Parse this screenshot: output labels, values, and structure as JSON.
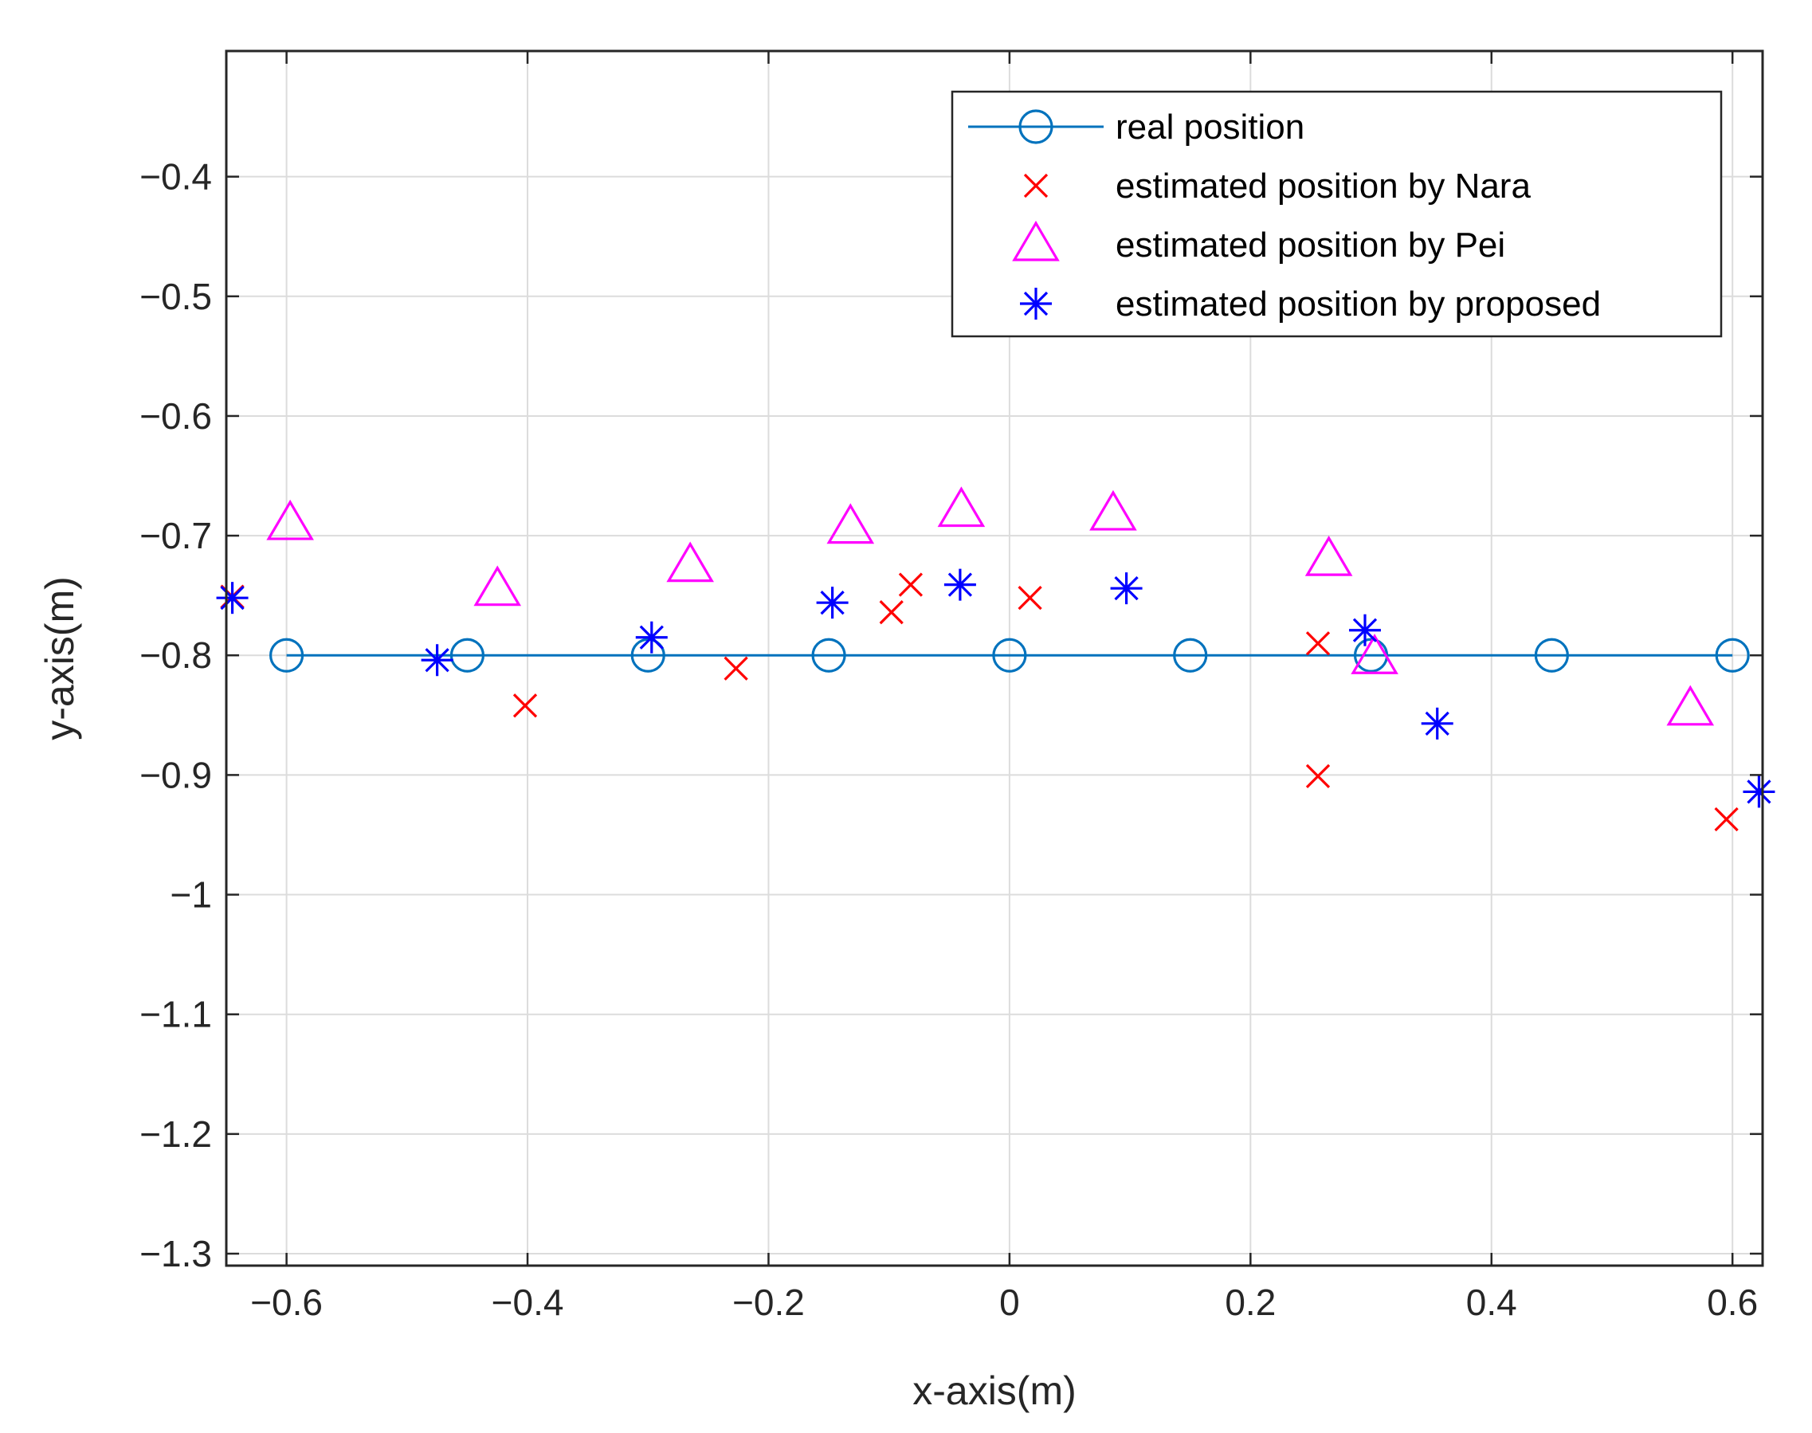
{
  "chart_data": {
    "type": "scatter",
    "title": "",
    "xlabel": "x-axis(m)",
    "ylabel": "y-axis(m)",
    "xlim": [
      -0.65,
      0.625
    ],
    "ylim": [
      -1.31,
      -0.295
    ],
    "grid": true,
    "legend_position": "top-right",
    "x_ticks": [
      -0.6,
      -0.4,
      -0.2,
      0,
      0.2,
      0.4,
      0.6
    ],
    "x_tick_labels": [
      "−0.6",
      "−0.4",
      "−0.2",
      "0",
      "0.2",
      "0.4",
      "0.6"
    ],
    "y_ticks": [
      -0.4,
      -0.5,
      -0.6,
      -0.7,
      -0.8,
      -0.9,
      -1.0,
      -1.1,
      -1.2,
      -1.3
    ],
    "y_tick_labels": [
      "−0.4",
      "−0.5",
      "−0.6",
      "−0.7",
      "−0.8",
      "−0.9",
      "−1",
      "−1.1",
      "−1.2",
      "−1.3"
    ],
    "series": [
      {
        "name": "real position",
        "marker": "circle",
        "line": true,
        "color": "#0072BD",
        "x": [
          -0.6,
          -0.45,
          -0.3,
          -0.15,
          0.0,
          0.15,
          0.3,
          0.45,
          0.6
        ],
        "y": [
          -0.8,
          -0.8,
          -0.8,
          -0.8,
          -0.8,
          -0.8,
          -0.8,
          -0.8,
          -0.8
        ]
      },
      {
        "name": "estimated position by Nara",
        "marker": "x",
        "line": false,
        "color": "#FF0000",
        "x": [
          -0.645,
          -0.402,
          -0.227,
          -0.098,
          -0.082,
          0.017,
          0.256,
          0.256,
          0.595
        ],
        "y": [
          -0.751,
          -0.842,
          -0.811,
          -0.764,
          -0.741,
          -0.752,
          -0.79,
          -0.901,
          -0.937
        ]
      },
      {
        "name": "estimated position by Pei",
        "marker": "triangle",
        "line": false,
        "color": "#FF00FF",
        "x": [
          -0.597,
          -0.425,
          -0.265,
          -0.132,
          -0.04,
          0.086,
          0.265,
          0.303,
          0.565
        ],
        "y": [
          -0.69,
          -0.745,
          -0.725,
          -0.693,
          -0.679,
          -0.682,
          -0.72,
          -0.802,
          -0.845
        ]
      },
      {
        "name": "estimated position by proposed",
        "marker": "asterisk",
        "line": false,
        "color": "#0000FF",
        "x": [
          -0.645,
          -0.475,
          -0.297,
          -0.147,
          -0.041,
          0.097,
          0.295,
          0.355,
          0.622
        ],
        "y": [
          -0.752,
          -0.804,
          -0.785,
          -0.756,
          -0.741,
          -0.744,
          -0.779,
          -0.857,
          -0.914
        ]
      }
    ]
  }
}
